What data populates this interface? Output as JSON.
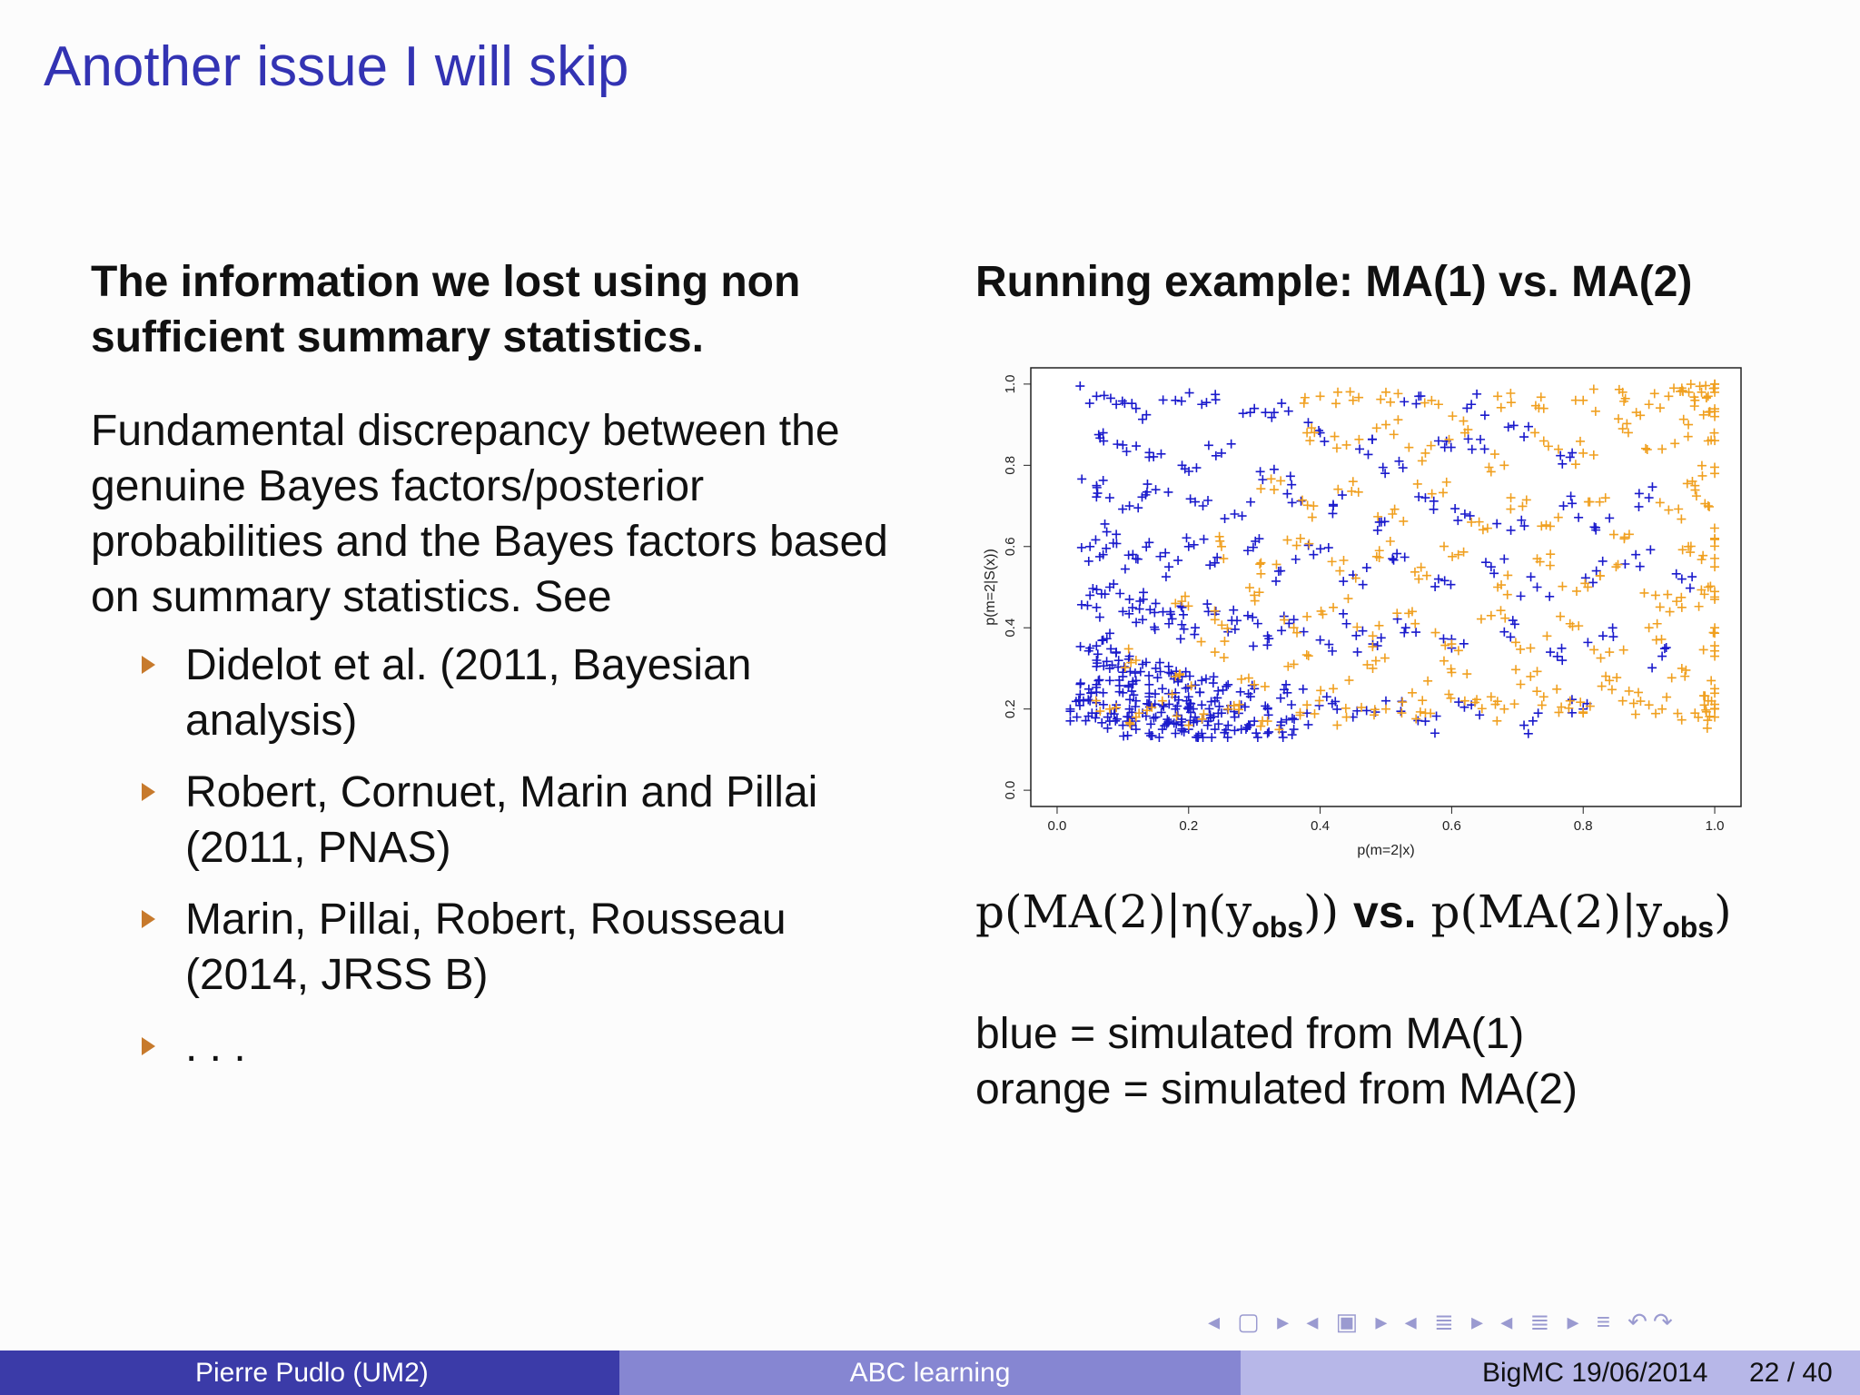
{
  "slide": {
    "title": "Another issue I will skip"
  },
  "left": {
    "heading": "The information we lost using non sufficient summary statistics.",
    "paragraph": "Fundamental discrepancy between the genuine Bayes factors/posterior probabilities and the Bayes factors based on summary statistics. See",
    "references": [
      "Didelot et al. (2011, Bayesian analysis)",
      "Robert, Cornuet, Marin and Pillai (2011, PNAS)",
      "Marin, Pillai, Robert, Rousseau (2014, JRSS B)",
      ". . ."
    ]
  },
  "right": {
    "heading": "Running example: MA(1) vs. MA(2)",
    "formula": {
      "left_p": "p(MA(2)|η(y",
      "left_sub": "obs",
      "left_close": "))",
      "vs": "vs.",
      "right_p": "p(MA(2)|y",
      "right_sub": "obs",
      "right_close": ")"
    },
    "legend_blue": "blue = simulated from MA(1)",
    "legend_orange": "orange = simulated from MA(2)"
  },
  "chart_data": {
    "type": "scatter",
    "title": "",
    "xlabel": "p(m=2|x)",
    "ylabel": "p(m=2|S(x))",
    "xlim": [
      0.0,
      1.0
    ],
    "ylim": [
      0.0,
      1.0
    ],
    "xticks": [
      "0.0",
      "0.2",
      "0.4",
      "0.6",
      "0.8",
      "1.0"
    ],
    "yticks": [
      "0.0",
      "0.2",
      "0.4",
      "0.6",
      "0.8",
      "1.0"
    ],
    "marker": "+",
    "grid": false,
    "series": [
      {
        "name": "simulated from MA(1)",
        "color": "#1a1acc",
        "points": [
          [
            0.06,
            0.97
          ],
          [
            0.09,
            0.95
          ],
          [
            0.12,
            0.94
          ],
          [
            0.18,
            0.96
          ],
          [
            0.22,
            0.95
          ],
          [
            0.3,
            0.94
          ],
          [
            0.33,
            0.93
          ],
          [
            0.55,
            0.97
          ],
          [
            0.63,
            0.95
          ],
          [
            0.07,
            0.88
          ],
          [
            0.1,
            0.85
          ],
          [
            0.14,
            0.82
          ],
          [
            0.19,
            0.8
          ],
          [
            0.25,
            0.83
          ],
          [
            0.33,
            0.79
          ],
          [
            0.4,
            0.88
          ],
          [
            0.46,
            0.84
          ],
          [
            0.52,
            0.81
          ],
          [
            0.58,
            0.86
          ],
          [
            0.65,
            0.84
          ],
          [
            0.71,
            0.87
          ],
          [
            0.78,
            0.82
          ],
          [
            0.06,
            0.75
          ],
          [
            0.08,
            0.72
          ],
          [
            0.11,
            0.7
          ],
          [
            0.15,
            0.74
          ],
          [
            0.21,
            0.71
          ],
          [
            0.27,
            0.68
          ],
          [
            0.35,
            0.73
          ],
          [
            0.42,
            0.7
          ],
          [
            0.49,
            0.66
          ],
          [
            0.56,
            0.72
          ],
          [
            0.62,
            0.68
          ],
          [
            0.69,
            0.64
          ],
          [
            0.77,
            0.7
          ],
          [
            0.84,
            0.67
          ],
          [
            0.9,
            0.72
          ],
          [
            0.05,
            0.6
          ],
          [
            0.07,
            0.58
          ],
          [
            0.09,
            0.63
          ],
          [
            0.12,
            0.57
          ],
          [
            0.14,
            0.61
          ],
          [
            0.17,
            0.55
          ],
          [
            0.2,
            0.6
          ],
          [
            0.24,
            0.56
          ],
          [
            0.29,
            0.59
          ],
          [
            0.34,
            0.54
          ],
          [
            0.39,
            0.58
          ],
          [
            0.45,
            0.53
          ],
          [
            0.51,
            0.57
          ],
          [
            0.58,
            0.52
          ],
          [
            0.66,
            0.55
          ],
          [
            0.73,
            0.5
          ],
          [
            0.82,
            0.54
          ],
          [
            0.88,
            0.58
          ],
          [
            0.95,
            0.52
          ],
          [
            0.05,
            0.48
          ],
          [
            0.06,
            0.45
          ],
          [
            0.08,
            0.5
          ],
          [
            0.1,
            0.44
          ],
          [
            0.11,
            0.47
          ],
          [
            0.13,
            0.42
          ],
          [
            0.15,
            0.46
          ],
          [
            0.17,
            0.41
          ],
          [
            0.19,
            0.45
          ],
          [
            0.21,
            0.4
          ],
          [
            0.23,
            0.44
          ],
          [
            0.26,
            0.39
          ],
          [
            0.29,
            0.43
          ],
          [
            0.32,
            0.38
          ],
          [
            0.36,
            0.42
          ],
          [
            0.4,
            0.37
          ],
          [
            0.44,
            0.41
          ],
          [
            0.48,
            0.36
          ],
          [
            0.53,
            0.4
          ],
          [
            0.6,
            0.35
          ],
          [
            0.68,
            0.39
          ],
          [
            0.75,
            0.34
          ],
          [
            0.83,
            0.38
          ],
          [
            0.92,
            0.33
          ],
          [
            0.05,
            0.35
          ],
          [
            0.06,
            0.32
          ],
          [
            0.07,
            0.37
          ],
          [
            0.08,
            0.3
          ],
          [
            0.09,
            0.34
          ],
          [
            0.1,
            0.28
          ],
          [
            0.11,
            0.33
          ],
          [
            0.12,
            0.27
          ],
          [
            0.13,
            0.31
          ],
          [
            0.14,
            0.26
          ],
          [
            0.15,
            0.3
          ],
          [
            0.16,
            0.25
          ],
          [
            0.17,
            0.29
          ],
          [
            0.18,
            0.24
          ],
          [
            0.19,
            0.28
          ],
          [
            0.2,
            0.23
          ],
          [
            0.22,
            0.27
          ],
          [
            0.24,
            0.22
          ],
          [
            0.26,
            0.26
          ],
          [
            0.28,
            0.21
          ],
          [
            0.3,
            0.25
          ],
          [
            0.32,
            0.2
          ],
          [
            0.35,
            0.24
          ],
          [
            0.38,
            0.19
          ],
          [
            0.41,
            0.23
          ],
          [
            0.45,
            0.18
          ],
          [
            0.5,
            0.22
          ],
          [
            0.56,
            0.17
          ],
          [
            0.63,
            0.21
          ],
          [
            0.71,
            0.16
          ],
          [
            0.8,
            0.2
          ],
          [
            0.05,
            0.22
          ],
          [
            0.06,
            0.19
          ],
          [
            0.07,
            0.24
          ],
          [
            0.08,
            0.17
          ],
          [
            0.09,
            0.21
          ],
          [
            0.1,
            0.16
          ],
          [
            0.11,
            0.2
          ],
          [
            0.12,
            0.15
          ],
          [
            0.13,
            0.19
          ],
          [
            0.14,
            0.14
          ],
          [
            0.15,
            0.18
          ],
          [
            0.16,
            0.15
          ],
          [
            0.17,
            0.17
          ],
          [
            0.18,
            0.14
          ],
          [
            0.19,
            0.16
          ],
          [
            0.2,
            0.15
          ],
          [
            0.21,
            0.18
          ],
          [
            0.22,
            0.14
          ],
          [
            0.23,
            0.17
          ],
          [
            0.24,
            0.15
          ],
          [
            0.25,
            0.19
          ],
          [
            0.26,
            0.16
          ],
          [
            0.27,
            0.18
          ],
          [
            0.28,
            0.15
          ],
          [
            0.3,
            0.17
          ],
          [
            0.32,
            0.14
          ],
          [
            0.34,
            0.16
          ],
          [
            0.36,
            0.15
          ],
          [
            0.02,
            0.2
          ],
          [
            0.03,
            0.18
          ],
          [
            0.04,
            0.22
          ],
          [
            0.06,
            0.26
          ],
          [
            0.08,
            0.27
          ],
          [
            0.1,
            0.24
          ],
          [
            0.12,
            0.22
          ],
          [
            0.14,
            0.23
          ],
          [
            0.16,
            0.21
          ],
          [
            0.18,
            0.2
          ],
          [
            0.2,
            0.2
          ],
          [
            0.22,
            0.21
          ]
        ]
      },
      {
        "name": "simulated from MA(2)",
        "color": "#f0a020",
        "points": [
          [
            0.4,
            0.97
          ],
          [
            0.45,
            0.96
          ],
          [
            0.5,
            0.98
          ],
          [
            0.58,
            0.95
          ],
          [
            0.67,
            0.97
          ],
          [
            0.74,
            0.94
          ],
          [
            0.8,
            0.96
          ],
          [
            0.86,
            0.98
          ],
          [
            0.9,
            0.95
          ],
          [
            0.93,
            0.97
          ],
          [
            0.95,
            0.99
          ],
          [
            0.97,
            0.96
          ],
          [
            0.98,
            0.98
          ],
          [
            0.99,
            0.97
          ],
          [
            1.0,
            0.99
          ],
          [
            0.38,
            0.88
          ],
          [
            0.44,
            0.85
          ],
          [
            0.5,
            0.9
          ],
          [
            0.56,
            0.83
          ],
          [
            0.62,
            0.88
          ],
          [
            0.68,
            0.8
          ],
          [
            0.74,
            0.86
          ],
          [
            0.8,
            0.83
          ],
          [
            0.86,
            0.89
          ],
          [
            0.92,
            0.84
          ],
          [
            0.96,
            0.9
          ],
          [
            0.99,
            0.86
          ],
          [
            1.0,
            0.92
          ],
          [
            0.33,
            0.74
          ],
          [
            0.39,
            0.7
          ],
          [
            0.45,
            0.76
          ],
          [
            0.51,
            0.68
          ],
          [
            0.57,
            0.73
          ],
          [
            0.63,
            0.66
          ],
          [
            0.69,
            0.72
          ],
          [
            0.75,
            0.65
          ],
          [
            0.81,
            0.71
          ],
          [
            0.87,
            0.63
          ],
          [
            0.93,
            0.69
          ],
          [
            0.97,
            0.75
          ],
          [
            1.0,
            0.78
          ],
          [
            0.99,
            0.7
          ],
          [
            0.25,
            0.6
          ],
          [
            0.31,
            0.56
          ],
          [
            0.37,
            0.62
          ],
          [
            0.43,
            0.54
          ],
          [
            0.49,
            0.59
          ],
          [
            0.55,
            0.52
          ],
          [
            0.61,
            0.58
          ],
          [
            0.67,
            0.5
          ],
          [
            0.73,
            0.57
          ],
          [
            0.79,
            0.49
          ],
          [
            0.85,
            0.55
          ],
          [
            0.91,
            0.48
          ],
          [
            0.96,
            0.6
          ],
          [
            1.0,
            0.62
          ],
          [
            1.0,
            0.55
          ],
          [
            0.99,
            0.5
          ],
          [
            0.18,
            0.46
          ],
          [
            0.24,
            0.42
          ],
          [
            0.3,
            0.48
          ],
          [
            0.36,
            0.4
          ],
          [
            0.42,
            0.45
          ],
          [
            0.48,
            0.38
          ],
          [
            0.54,
            0.44
          ],
          [
            0.6,
            0.36
          ],
          [
            0.66,
            0.43
          ],
          [
            0.72,
            0.35
          ],
          [
            0.78,
            0.41
          ],
          [
            0.84,
            0.34
          ],
          [
            0.9,
            0.4
          ],
          [
            0.95,
            0.45
          ],
          [
            1.0,
            0.47
          ],
          [
            1.0,
            0.4
          ],
          [
            0.12,
            0.32
          ],
          [
            0.18,
            0.28
          ],
          [
            0.24,
            0.34
          ],
          [
            0.3,
            0.26
          ],
          [
            0.36,
            0.31
          ],
          [
            0.42,
            0.25
          ],
          [
            0.48,
            0.3
          ],
          [
            0.54,
            0.24
          ],
          [
            0.6,
            0.29
          ],
          [
            0.66,
            0.23
          ],
          [
            0.72,
            0.28
          ],
          [
            0.78,
            0.22
          ],
          [
            0.84,
            0.27
          ],
          [
            0.9,
            0.21
          ],
          [
            0.95,
            0.3
          ],
          [
            1.0,
            0.33
          ],
          [
            1.0,
            0.25
          ],
          [
            0.08,
            0.2
          ],
          [
            0.12,
            0.18
          ],
          [
            0.16,
            0.22
          ],
          [
            0.2,
            0.16
          ],
          [
            0.26,
            0.2
          ],
          [
            0.32,
            0.17
          ],
          [
            0.38,
            0.21
          ],
          [
            0.44,
            0.18
          ],
          [
            0.5,
            0.2
          ],
          [
            0.56,
            0.19
          ],
          [
            0.62,
            0.22
          ],
          [
            0.68,
            0.2
          ],
          [
            0.74,
            0.23
          ],
          [
            0.8,
            0.19
          ],
          [
            0.86,
            0.22
          ],
          [
            0.92,
            0.2
          ],
          [
            0.97,
            0.19
          ],
          [
            1.0,
            0.18
          ],
          [
            1.0,
            0.2
          ],
          [
            0.99,
            0.22
          ]
        ]
      }
    ]
  },
  "navigation": {
    "symbols": "◂ ▢ ▸ ◂ ▣ ▸ ◂ ≣ ▸ ◂ ≣ ▸ ≡ ↶↷"
  },
  "footer": {
    "author": "Pierre Pudlo  (UM2)",
    "talk": "ABC learning",
    "event": "BigMC 19/06/2014",
    "page": "22 / 40"
  }
}
